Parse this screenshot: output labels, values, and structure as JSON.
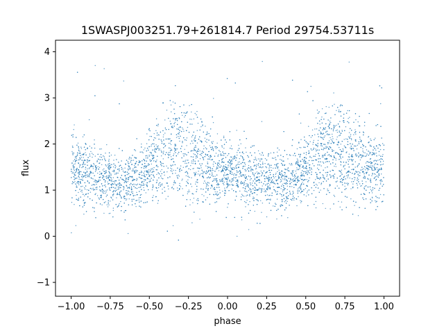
{
  "chart_data": {
    "type": "scatter",
    "title": "1SWASPJ003251.79+261814.7 Period 29754.53711s",
    "xlabel": "phase",
    "ylabel": "flux",
    "xlim": [
      -1.1,
      1.1
    ],
    "ylim": [
      -1.3,
      4.25
    ],
    "xticks": [
      -1.0,
      -0.75,
      -0.5,
      -0.25,
      0.0,
      0.25,
      0.5,
      0.75,
      1.0
    ],
    "xtick_labels": [
      "−1.00",
      "−0.75",
      "−0.50",
      "−0.25",
      "0.00",
      "0.25",
      "0.50",
      "0.75",
      "1.00"
    ],
    "yticks": [
      -1,
      0,
      1,
      2,
      3,
      4
    ],
    "ytick_labels": [
      "−1",
      "0",
      "1",
      "2",
      "3",
      "4"
    ],
    "grid": false,
    "marker_color": "#1f77b4",
    "series": [
      {
        "phase": [
          -1.0,
          -0.9,
          -0.8,
          -0.7,
          -0.65,
          -0.6,
          -0.5,
          -0.4,
          -0.3,
          -0.25,
          -0.2,
          -0.1,
          0.0,
          0.1,
          0.2,
          0.3,
          0.35,
          0.4,
          0.5,
          0.6,
          0.7,
          0.75,
          0.8,
          0.9,
          1.0
        ],
        "upper_branch_flux": [
          1.8,
          1.7,
          1.55,
          1.4,
          1.35,
          1.45,
          1.85,
          2.45,
          2.65,
          2.6,
          2.35,
          2.05,
          1.8,
          1.7,
          1.55,
          1.4,
          1.35,
          1.45,
          1.85,
          2.45,
          2.65,
          2.6,
          2.35,
          2.05,
          1.8
        ],
        "lower_branch_flux": [
          1.05,
          1.0,
          0.95,
          0.95,
          1.0,
          1.0,
          1.05,
          1.1,
          1.1,
          1.05,
          1.0,
          1.0,
          1.05,
          1.0,
          0.95,
          0.95,
          1.0,
          1.0,
          1.05,
          1.1,
          1.1,
          1.05,
          1.0,
          1.0,
          1.05
        ]
      }
    ]
  }
}
